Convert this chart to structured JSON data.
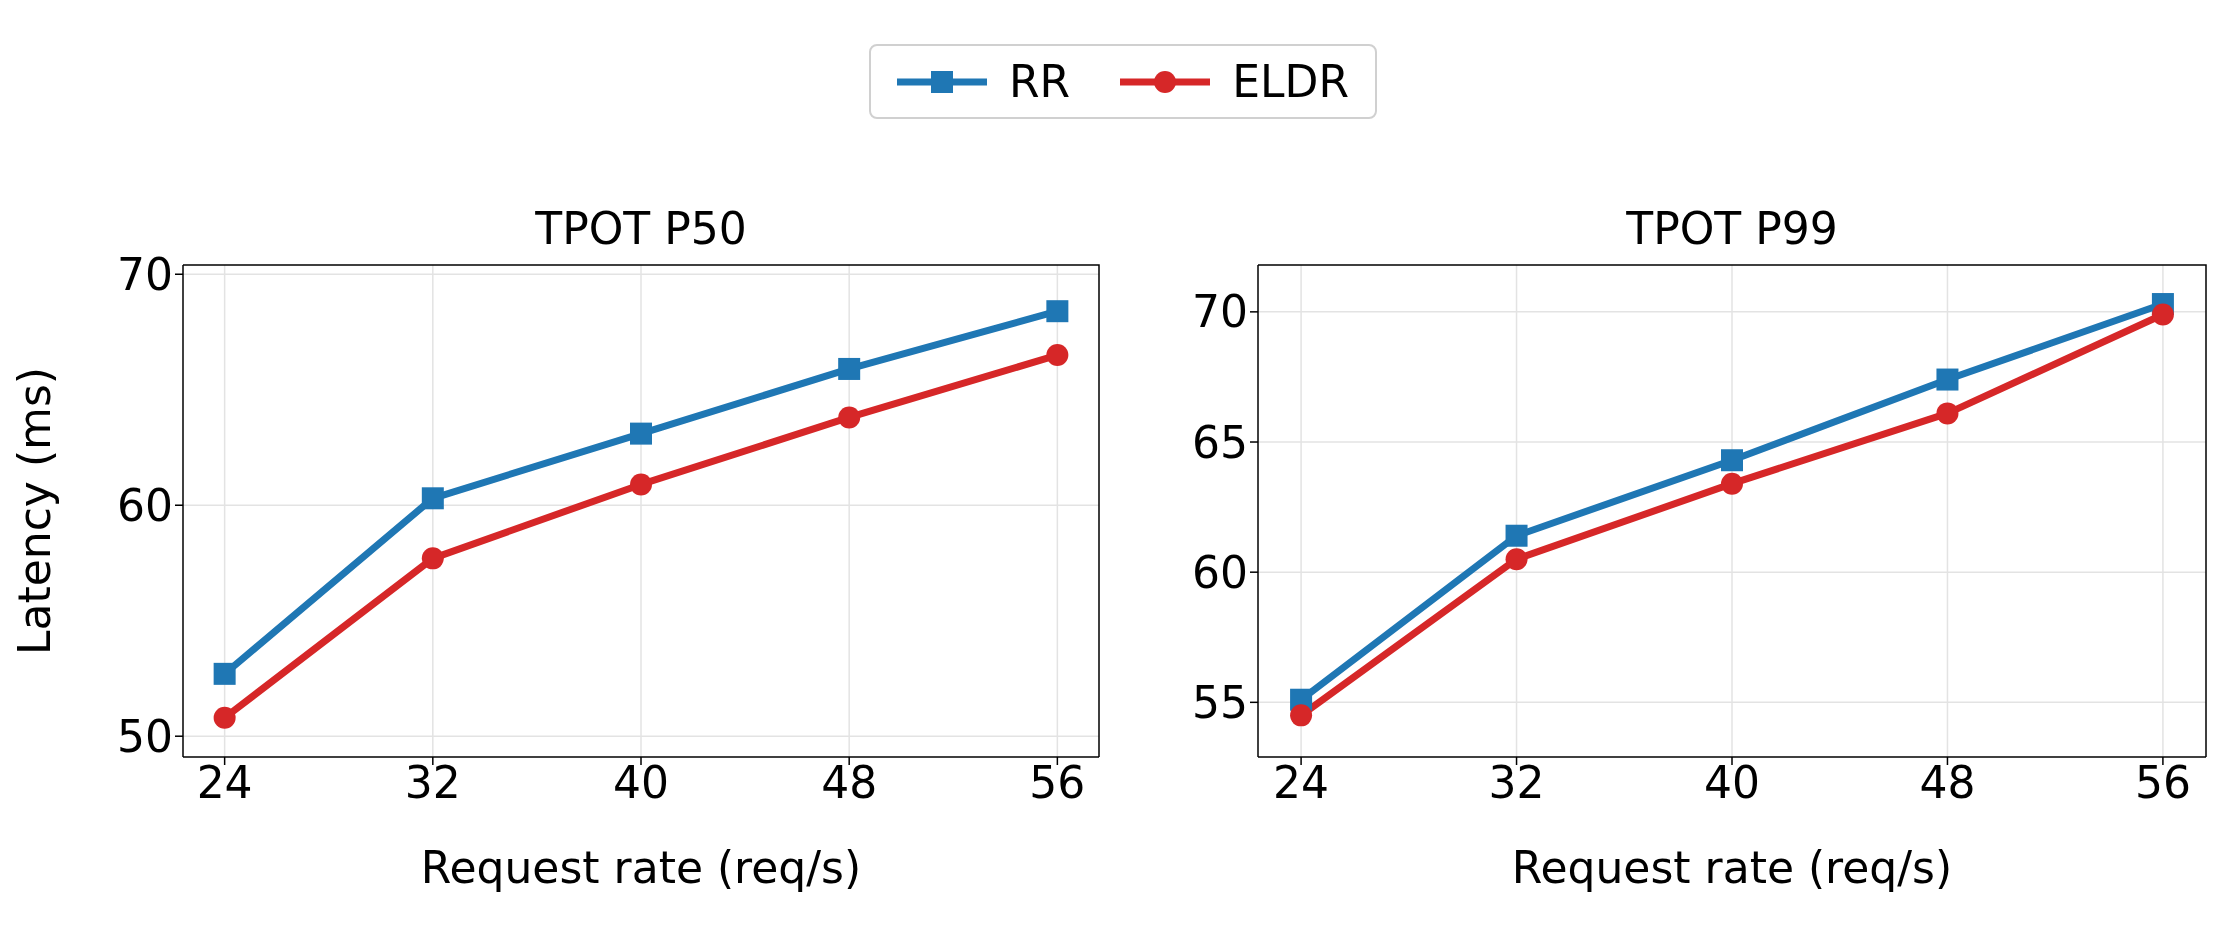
{
  "chart_data": [
    {
      "type": "line",
      "title": "TPOT P50",
      "xlabel": "Request rate (req/s)",
      "ylabel": "Latency (ms)",
      "x": [
        24,
        32,
        40,
        48,
        56
      ],
      "xlim": [
        22.4,
        57.6
      ],
      "xticks": [
        24,
        32,
        40,
        48,
        56
      ],
      "ylim": [
        49.1,
        70.4
      ],
      "yticks": [
        50,
        60,
        70
      ],
      "grid": true,
      "legend": "top",
      "series": [
        {
          "name": "RR",
          "color": "#1f77b4",
          "marker": "square",
          "values": [
            52.7,
            60.3,
            63.1,
            65.9,
            68.4
          ]
        },
        {
          "name": "ELDR",
          "color": "#d62728",
          "marker": "circle",
          "values": [
            50.8,
            57.7,
            60.9,
            63.8,
            66.5
          ]
        }
      ]
    },
    {
      "type": "line",
      "title": "TPOT P99",
      "xlabel": "Request rate (req/s)",
      "x": [
        24,
        32,
        40,
        48,
        56
      ],
      "xlim": [
        22.4,
        57.6
      ],
      "xticks": [
        24,
        32,
        40,
        48,
        56
      ],
      "ylim": [
        52.9,
        71.8
      ],
      "yticks": [
        55,
        60,
        65,
        70
      ],
      "grid": true,
      "series": [
        {
          "color": "#1f77b4",
          "marker": "square",
          "values": [
            55.1,
            61.4,
            64.3,
            67.4,
            70.3
          ]
        },
        {
          "color": "#d62728",
          "marker": "circle",
          "values": [
            54.5,
            60.5,
            63.4,
            66.1,
            69.9
          ]
        }
      ]
    }
  ]
}
